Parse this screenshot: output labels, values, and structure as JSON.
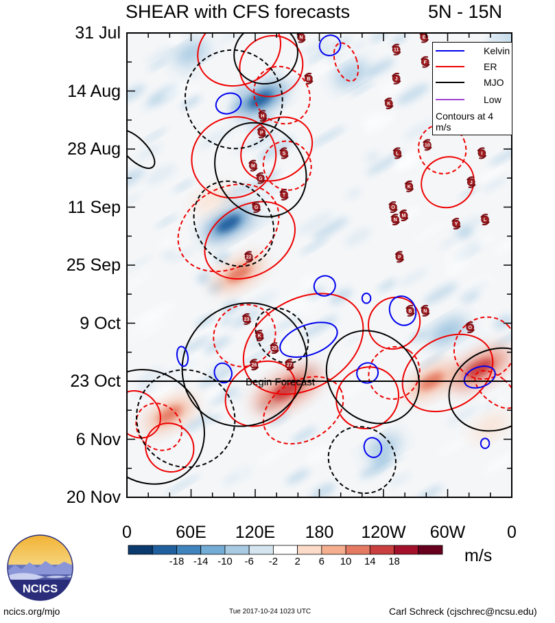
{
  "title": {
    "left": "SHEAR with CFS forecasts",
    "right": "5N - 15N"
  },
  "chart_data": {
    "type": "heatmap",
    "title": "SHEAR with CFS forecasts",
    "subtitle": "5N - 15N",
    "x_ticks": [
      "0",
      "60E",
      "120E",
      "180",
      "120W",
      "60W",
      "0"
    ],
    "x_tick_values": [
      0,
      60,
      120,
      180,
      240,
      300,
      360
    ],
    "xlim": [
      0,
      360
    ],
    "y_ticks": [
      "31 Jul",
      "14 Aug",
      "28 Aug",
      "11 Sep",
      "25 Sep",
      "9 Oct",
      "23 Oct",
      "6 Nov",
      "20 Nov"
    ],
    "y_tick_days": [
      0,
      14,
      28,
      42,
      56,
      70,
      84,
      98,
      112
    ],
    "ylim_days": [
      0,
      112
    ],
    "begin_forecast": {
      "label": "Begin Forecast",
      "day": 84
    },
    "colorbar": {
      "unit": "m/s",
      "tick_labels": [
        "-18",
        "-14",
        "-10",
        "-6",
        "-2",
        "2",
        "6",
        "10",
        "14",
        "18"
      ],
      "colors": [
        "#0b3a6e",
        "#20609f",
        "#3f84bd",
        "#73acd4",
        "#a8cbe3",
        "#d5e5f0",
        "#ffffff",
        "#fcdcc8",
        "#f5ae8e",
        "#e57a63",
        "#ca3f40",
        "#a3122a",
        "#67001f"
      ]
    },
    "legend": {
      "entries": [
        {
          "label": "Kelvin",
          "color": "#0000ee"
        },
        {
          "label": "ER",
          "color": "#ee0000"
        },
        {
          "label": "MJO",
          "color": "#000000"
        },
        {
          "label": "Low",
          "color": "#a040d0"
        }
      ],
      "note": "Contours at 4 m/s"
    },
    "anomaly_blobs": [
      {
        "lon": 150,
        "day": 86,
        "value": 18
      },
      {
        "lon": 105,
        "day": 58,
        "value": 12
      },
      {
        "lon": 95,
        "day": 46,
        "value": -12
      },
      {
        "lon": 125,
        "day": 16,
        "value": -12
      },
      {
        "lon": 330,
        "day": 81,
        "value": 16
      },
      {
        "lon": 285,
        "day": 84,
        "value": 12
      },
      {
        "lon": 40,
        "day": 92,
        "value": 12
      },
      {
        "lon": 300,
        "day": 72,
        "value": -8
      },
      {
        "lon": 60,
        "day": 5,
        "value": -6
      },
      {
        "lon": 210,
        "day": 10,
        "value": -6
      },
      {
        "lon": 80,
        "day": 40,
        "value": 8
      },
      {
        "lon": 160,
        "day": 66,
        "value": 6
      },
      {
        "lon": 240,
        "day": 100,
        "value": -6
      },
      {
        "lon": 340,
        "day": 95,
        "value": 8
      },
      {
        "lon": 20,
        "day": 70,
        "value": 4
      }
    ],
    "contours": {
      "ER": [
        {
          "lon": 100,
          "day": 30,
          "a": 40,
          "b": 8,
          "rot": -28,
          "dash": false
        },
        {
          "lon": 95,
          "day": 47,
          "a": 50,
          "b": 8,
          "rot": -30,
          "dash": true
        },
        {
          "lon": 115,
          "day": 50,
          "a": 45,
          "b": 7,
          "rot": -30,
          "dash": false
        },
        {
          "lon": 105,
          "day": 4,
          "a": 40,
          "b": 7,
          "rot": -25,
          "dash": false
        },
        {
          "lon": 135,
          "day": 8,
          "a": 30,
          "b": 6,
          "rot": -30,
          "dash": false
        },
        {
          "lon": 145,
          "day": 15,
          "a": 25,
          "b": 6,
          "rot": -40,
          "dash": true
        },
        {
          "lon": 150,
          "day": 32,
          "a": 22,
          "b": 5,
          "rot": -35,
          "dash": true
        },
        {
          "lon": 140,
          "day": 28,
          "a": 35,
          "b": 6,
          "rot": -30,
          "dash": false
        },
        {
          "lon": 110,
          "day": 73,
          "a": 30,
          "b": 6,
          "rot": -45,
          "dash": true
        },
        {
          "lon": 165,
          "day": 75,
          "a": 60,
          "b": 9,
          "rot": -30,
          "dash": false
        },
        {
          "lon": 125,
          "day": 87,
          "a": 35,
          "b": 6,
          "rot": -35,
          "dash": false
        },
        {
          "lon": 165,
          "day": 91,
          "a": 40,
          "b": 6,
          "rot": -30,
          "dash": true
        },
        {
          "lon": 225,
          "day": 88,
          "a": 30,
          "b": 6,
          "rot": -40,
          "dash": false
        },
        {
          "lon": 250,
          "day": 82,
          "a": 25,
          "b": 5,
          "rot": -55,
          "dash": true
        },
        {
          "lon": 250,
          "day": 70,
          "a": 25,
          "b": 5,
          "rot": -45,
          "dash": false
        },
        {
          "lon": 300,
          "day": 82,
          "a": 45,
          "b": 7,
          "rot": -30,
          "dash": false
        },
        {
          "lon": 335,
          "day": 76,
          "a": 30,
          "b": 6,
          "rot": -45,
          "dash": true
        },
        {
          "lon": 300,
          "day": 36,
          "a": 25,
          "b": 5,
          "rot": -30,
          "dash": false
        },
        {
          "lon": 295,
          "day": 28,
          "a": 22,
          "b": 5,
          "rot": -25,
          "dash": true
        },
        {
          "lon": 10,
          "day": 92,
          "a": 20,
          "b": 5,
          "rot": -40,
          "dash": false
        },
        {
          "lon": 30,
          "day": 95,
          "a": 20,
          "b": 5,
          "rot": -40,
          "dash": true
        },
        {
          "lon": 40,
          "day": 100,
          "a": 22,
          "b": 5,
          "rot": -40,
          "dash": false
        },
        {
          "lon": 205,
          "day": 7,
          "a": 10,
          "b": 4,
          "rot": -20,
          "dash": true
        },
        {
          "lon": 345,
          "day": 86,
          "a": 12,
          "b": 5,
          "rot": -50,
          "dash": true
        }
      ],
      "MJO": [
        {
          "lon": 100,
          "day": 16,
          "a": 45,
          "b": 10,
          "rot": -35,
          "dash": true
        },
        {
          "lon": 125,
          "day": 33,
          "a": 40,
          "b": 10,
          "rot": -40,
          "dash": false
        },
        {
          "lon": 100,
          "day": 46,
          "a": 35,
          "b": 9,
          "rot": -35,
          "dash": true
        },
        {
          "lon": 110,
          "day": 80,
          "a": 60,
          "b": 12,
          "rot": -40,
          "dash": false
        },
        {
          "lon": 145,
          "day": 73,
          "a": 22,
          "b": 6,
          "rot": -40,
          "dash": true
        },
        {
          "lon": 230,
          "day": 83,
          "a": 40,
          "b": 10,
          "rot": -45,
          "dash": false
        },
        {
          "lon": 55,
          "day": 93,
          "a": 45,
          "b": 10,
          "rot": -55,
          "dash": true
        },
        {
          "lon": 20,
          "day": 95,
          "a": 50,
          "b": 12,
          "rot": -40,
          "dash": false
        },
        {
          "lon": 220,
          "day": 103,
          "a": 30,
          "b": 7,
          "rot": -50,
          "dash": true
        },
        {
          "lon": 345,
          "day": 86,
          "a": 45,
          "b": 8,
          "rot": -25,
          "dash": false
        },
        {
          "lon": 8,
          "day": 28,
          "a": 10,
          "b": 5,
          "rot": -45,
          "dash": false
        },
        {
          "lon": 130,
          "day": 5,
          "a": 30,
          "b": 6,
          "rot": -20,
          "dash": false
        }
      ],
      "Kelvin": [
        {
          "lon": 190,
          "day": 3,
          "a": 10,
          "b": 2,
          "rot": -30
        },
        {
          "lon": 95,
          "day": 17,
          "a": 12,
          "b": 2,
          "rot": -20
        },
        {
          "lon": 185,
          "day": 61,
          "a": 10,
          "b": 2,
          "rot": -20
        },
        {
          "lon": 258,
          "day": 67,
          "a": 12,
          "b": 3,
          "rot": -25
        },
        {
          "lon": 170,
          "day": 74,
          "a": 28,
          "b": 3,
          "rot": -20
        },
        {
          "lon": 90,
          "day": 82,
          "a": 8,
          "b": 2,
          "rot": -20
        },
        {
          "lon": 225,
          "day": 82,
          "a": 10,
          "b": 2,
          "rot": -20
        },
        {
          "lon": 330,
          "day": 83,
          "a": 15,
          "b": 2,
          "rot": -20
        },
        {
          "lon": 230,
          "day": 100,
          "a": 8,
          "b": 2,
          "rot": -20
        },
        {
          "lon": 52,
          "day": 78,
          "a": 5,
          "b": 2,
          "rot": -10
        },
        {
          "lon": 224,
          "day": 64,
          "a": 4,
          "b": 1,
          "rot": 0
        },
        {
          "lon": 335,
          "day": 99,
          "a": 4,
          "b": 1,
          "rot": 0
        }
      ]
    },
    "storm_markers": [
      {
        "label": "N",
        "lon": 163,
        "day": 1
      },
      {
        "label": "B",
        "lon": 170,
        "day": 11
      },
      {
        "label": "H",
        "lon": 127,
        "day": 20
      },
      {
        "label": "P",
        "lon": 126,
        "day": 24
      },
      {
        "label": "S",
        "lon": 147,
        "day": 29
      },
      {
        "label": "M",
        "lon": 118,
        "day": 32
      },
      {
        "label": "G",
        "lon": 125,
        "day": 35
      },
      {
        "label": "T",
        "lon": 147,
        "day": 39
      },
      {
        "label": "G",
        "lon": 121,
        "day": 42
      },
      {
        "label": "22",
        "lon": 114,
        "day": 54
      },
      {
        "label": "23",
        "lon": 112,
        "day": 69
      },
      {
        "label": "K",
        "lon": 124,
        "day": 73
      },
      {
        "label": "25",
        "lon": 138,
        "day": 76
      },
      {
        "label": "26",
        "lon": 119,
        "day": 80
      },
      {
        "label": "27",
        "lon": 152,
        "day": 80
      },
      {
        "label": "E",
        "lon": 278,
        "day": 1
      },
      {
        "label": "11",
        "lon": 252,
        "day": 4
      },
      {
        "label": "F",
        "lon": 279,
        "day": 7
      },
      {
        "label": "J",
        "lon": 252,
        "day": 11
      },
      {
        "label": "K",
        "lon": 245,
        "day": 17
      },
      {
        "label": "10",
        "lon": 281,
        "day": 27
      },
      {
        "label": "L",
        "lon": 253,
        "day": 29
      },
      {
        "label": "I",
        "lon": 332,
        "day": 29
      },
      {
        "label": "K",
        "lon": 264,
        "day": 37
      },
      {
        "label": "J",
        "lon": 322,
        "day": 36
      },
      {
        "label": "O",
        "lon": 249,
        "day": 42
      },
      {
        "label": "M",
        "lon": 259,
        "day": 44
      },
      {
        "label": "N",
        "lon": 251,
        "day": 45
      },
      {
        "label": "Y",
        "lon": 308,
        "day": 46
      },
      {
        "label": "L",
        "lon": 335,
        "day": 45
      },
      {
        "label": "P",
        "lon": 255,
        "day": 54
      },
      {
        "label": "B",
        "lon": 265,
        "day": 67
      },
      {
        "label": "N",
        "lon": 279,
        "day": 67
      },
      {
        "label": "O",
        "lon": 321,
        "day": 71
      }
    ]
  },
  "footer": {
    "left": "ncics.org/mjo",
    "timestamp": "Tue 2017-10-24 1023 UTC",
    "right": "Carl Schreck (cjschrec@ncsu.edu)",
    "logo_text": "NCICS"
  }
}
